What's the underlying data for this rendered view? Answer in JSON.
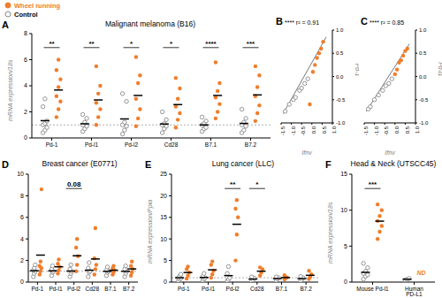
{
  "chart_data": [
    {
      "type": "dot",
      "panel": "A",
      "title": "Malignant melanoma (B16)",
      "y_label": "mRNA expression/18s",
      "categories": [
        "Pd-1",
        "Pd-l1",
        "Pd-l2",
        "Cd28",
        "B7.1",
        "B7.2"
      ],
      "series": [
        {
          "name": "Wheel running",
          "color": "#f07d2b",
          "marker": "filled",
          "values": [
            [
              1.6,
              2.2,
              2.8,
              3.2,
              3.9,
              4.5,
              5.2,
              6.0
            ],
            [
              1.0,
              1.6,
              2.2,
              2.7,
              3.4,
              4.0,
              5.5
            ],
            [
              0.9,
              1.5,
              2.2,
              3.0,
              4.2,
              4.8,
              6.2
            ],
            [
              0.8,
              1.4,
              1.9,
              2.4,
              3.0,
              3.8,
              4.6
            ],
            [
              1.5,
              2.0,
              2.6,
              3.1,
              3.6,
              4.2,
              5.8
            ],
            [
              1.3,
              1.9,
              2.5,
              3.2,
              3.9,
              4.8,
              5.5
            ]
          ]
        },
        {
          "name": "Control",
          "color": "#8a8a8a",
          "marker": "open",
          "values": [
            [
              0.4,
              0.6,
              0.8,
              1.0,
              1.1,
              1.3,
              2.4,
              3.0
            ],
            [
              0.5,
              0.7,
              0.9,
              1.0,
              1.2,
              1.5,
              1.8
            ],
            [
              0.3,
              0.6,
              0.9,
              1.0,
              1.2,
              2.8,
              3.4
            ],
            [
              0.4,
              0.7,
              0.9,
              1.0,
              1.1,
              1.4,
              2.0
            ],
            [
              0.5,
              0.7,
              0.8,
              1.0,
              1.1,
              1.3,
              1.6
            ],
            [
              0.4,
              0.6,
              0.9,
              1.0,
              1.2,
              1.5,
              2.2
            ]
          ]
        }
      ],
      "ylim": [
        0,
        8
      ],
      "yticks": [
        0,
        2,
        4,
        6,
        8
      ],
      "baseline": 1,
      "annotations": [
        {
          "category": "Pd-1",
          "text": "**"
        },
        {
          "category": "Pd-l1",
          "text": "**"
        },
        {
          "category": "Pd-l2",
          "text": "*"
        },
        {
          "category": "Cd28",
          "text": "*"
        },
        {
          "category": "B7.1",
          "text": "****"
        },
        {
          "category": "B7.2",
          "text": "***"
        }
      ]
    },
    {
      "type": "scatter",
      "panel": "B",
      "x_label": "Ifnγ",
      "y_label": "Pd-1",
      "annotation": "**** r² = 0.91",
      "series": [
        {
          "name": "Wheel running",
          "color": "#f07d2b",
          "marker": "filled",
          "x": [
            -0.1,
            0.05,
            0.15,
            0.25,
            0.35,
            0.45,
            0.55
          ],
          "y": [
            -0.6,
            0.1,
            0.25,
            0.4,
            0.5,
            0.6,
            0.75
          ]
        },
        {
          "name": "Control",
          "color": "#8a8a8a",
          "marker": "open",
          "x": [
            -1.3,
            -1.1,
            -0.9,
            -0.8,
            -0.6,
            -0.5,
            -0.35,
            -0.2
          ],
          "y": [
            -0.75,
            -0.6,
            -0.5,
            -0.45,
            -0.3,
            -0.25,
            -0.15,
            -0.05
          ]
        }
      ],
      "trend": {
        "x": [
          -1.4,
          0.7
        ],
        "y": [
          -0.8,
          0.85
        ]
      },
      "xlim": [
        -1.5,
        1
      ],
      "xticks": [
        -1.5,
        {
          "value": -1,
          "label": "-1.0"
        },
        -0.5,
        {
          "value": 0,
          "label": "0.0"
        },
        0.5,
        {
          "value": 1,
          "label": "1.0"
        }
      ],
      "ylim": [
        -1,
        1
      ],
      "yticks": [
        {
          "value": -1,
          "label": "-1.0"
        },
        -0.5,
        {
          "value": 0,
          "label": "0.0"
        },
        0.5,
        {
          "value": 1,
          "label": "1.0"
        }
      ]
    },
    {
      "type": "scatter",
      "panel": "C",
      "x_label": "Ifnγ",
      "y_label": "Pd-l1",
      "annotation": "**** r² = 0.85",
      "series": [
        {
          "name": "Wheel running",
          "color": "#f07d2b",
          "marker": "filled",
          "x": [
            0.0,
            0.1,
            0.2,
            0.3,
            0.4,
            0.5,
            0.6
          ],
          "y": [
            0.05,
            0.15,
            0.3,
            0.35,
            0.45,
            0.55,
            0.6
          ]
        },
        {
          "name": "Control",
          "color": "#8a8a8a",
          "marker": "open",
          "x": [
            -1.3,
            -1.2,
            -1.0,
            -0.8,
            -0.6,
            -0.45,
            -0.3,
            -0.15
          ],
          "y": [
            -0.7,
            -0.65,
            -0.5,
            -0.4,
            -0.3,
            -0.2,
            -0.15,
            -0.05
          ]
        }
      ],
      "trend": {
        "x": [
          -1.4,
          0.7
        ],
        "y": [
          -0.75,
          0.7
        ]
      },
      "xlim": [
        -1.5,
        1
      ],
      "xticks": [
        -1.5,
        {
          "value": -1,
          "label": "-1.0"
        },
        -0.5,
        {
          "value": 0,
          "label": "0.0"
        },
        0.5,
        {
          "value": 1,
          "label": "1.0"
        }
      ],
      "ylim": [
        -1,
        1
      ],
      "yticks": [
        {
          "value": -1,
          "label": "-1.0"
        },
        -0.5,
        {
          "value": 0,
          "label": "0.0"
        },
        0.5,
        {
          "value": 1,
          "label": "1.0"
        }
      ]
    },
    {
      "type": "dot",
      "panel": "D",
      "title": "Breast cancer (E0771)",
      "categories": [
        "Pd-1",
        "Pd-l1",
        "Pd-l2",
        "Cd28",
        "B7.1",
        "B7.2"
      ],
      "series": [
        {
          "name": "Wheel running",
          "color": "#f07d2b",
          "marker": "filled",
          "values": [
            [
              0.7,
              1.0,
              1.3,
              1.5,
              1.9,
              8.6
            ],
            [
              0.8,
              1.1,
              1.4,
              1.7,
              2.1
            ],
            [
              1.0,
              1.6,
              2.4,
              3.2,
              4.0
            ],
            [
              0.7,
              1.2,
              1.6,
              2.2,
              5.0
            ],
            [
              0.7,
              0.9,
              1.1,
              1.3,
              1.5
            ],
            [
              0.6,
              0.9,
              1.2,
              1.5,
              1.9
            ]
          ]
        },
        {
          "name": "Control",
          "color": "#8a8a8a",
          "marker": "open",
          "values": [
            [
              0.5,
              0.8,
              1.0,
              1.1,
              1.3,
              1.6
            ],
            [
              0.6,
              0.9,
              1.0,
              1.2,
              1.5
            ],
            [
              0.5,
              0.8,
              1.0,
              1.2,
              1.6
            ],
            [
              0.5,
              0.9,
              1.0,
              1.3,
              1.8
            ],
            [
              0.6,
              0.9,
              1.0,
              1.1,
              1.4
            ],
            [
              0.5,
              0.8,
              1.0,
              1.2,
              1.5
            ]
          ]
        }
      ],
      "ylim": [
        0,
        10
      ],
      "yticks": [
        0,
        2,
        4,
        6,
        8,
        10
      ],
      "baseline": 1,
      "annotations": [
        {
          "category": "Pd-l2",
          "text": "0.08"
        }
      ]
    },
    {
      "type": "dot",
      "panel": "E",
      "title": "Lung cancer (LLC)",
      "y_label": "mRNA expression/Ppia",
      "categories": [
        "Pd-1",
        "Pd-l1",
        "Pd-l2",
        "Cd28",
        "B7.1",
        "B7.2"
      ],
      "series": [
        {
          "name": "Wheel running",
          "color": "#f07d2b",
          "marker": "filled",
          "values": [
            [
              0.8,
              1.5,
              2.2,
              3.0,
              3.6
            ],
            [
              1.0,
              1.8,
              2.6,
              4.0,
              4.8
            ],
            [
              5.0,
              11.0,
              15.0,
              17.0,
              19.0
            ],
            [
              1.5,
              2.2,
              3.0,
              3.4
            ],
            [
              0.6,
              0.9,
              1.1,
              1.6
            ],
            [
              0.7,
              1.2,
              1.8,
              2.6
            ]
          ]
        },
        {
          "name": "Control",
          "color": "#8a8a8a",
          "marker": "open",
          "values": [
            [
              0.3,
              0.6,
              0.9,
              1.0,
              1.4,
              1.8
            ],
            [
              0.4,
              0.7,
              1.0,
              1.3,
              2.0
            ],
            [
              0.3,
              0.6,
              1.0,
              2.0,
              3.6
            ],
            [
              0.2,
              0.5,
              0.9,
              1.2
            ],
            [
              0.4,
              0.7,
              1.0,
              1.2
            ],
            [
              0.3,
              0.6,
              1.0,
              1.3
            ]
          ]
        }
      ],
      "ylim": [
        0,
        25
      ],
      "yticks": [
        0,
        5,
        10,
        15,
        20,
        25
      ],
      "baseline": 1,
      "annotations": [
        {
          "category": "Pd-l2",
          "text": "**"
        },
        {
          "category": "Cd28",
          "text": "*"
        }
      ]
    },
    {
      "type": "dot",
      "panel": "F",
      "title": "Head & Neck (UTSCC45)",
      "y_label": "mRNA expression/18s",
      "categories": [
        "Mouse Pd-l1",
        "Human PD-L1"
      ],
      "series": [
        {
          "name": "Wheel running",
          "color": "#f07d2b",
          "marker": "filled",
          "values": [
            [
              6.0,
              7.0,
              7.8,
              8.5,
              9.2,
              10.0,
              10.8
            ],
            []
          ]
        },
        {
          "name": "Control",
          "color": "#8a8a8a",
          "marker": "open",
          "values": [
            [
              0.4,
              0.8,
              1.0,
              1.2,
              1.5,
              2.0,
              2.6
            ],
            [
              0.3,
              0.4,
              0.5
            ]
          ]
        }
      ],
      "ylim": [
        0,
        15
      ],
      "yticks": [
        0,
        5,
        10,
        15
      ],
      "annotations": [
        {
          "category": "Mouse Pd-l1",
          "text": "***"
        },
        {
          "category": "Human PD-L1",
          "text": "ND",
          "series": "Wheel running"
        }
      ]
    }
  ]
}
